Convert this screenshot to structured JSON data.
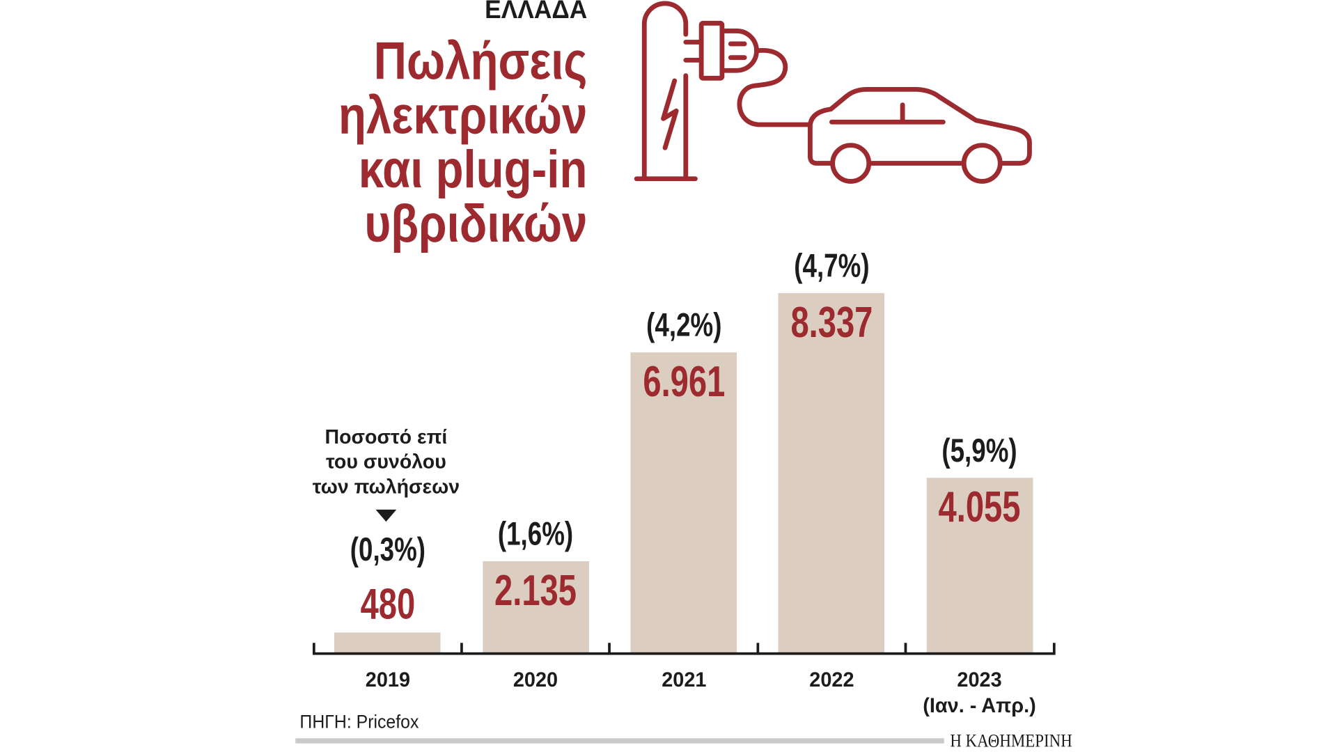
{
  "colors": {
    "accent": "#9c2a2f",
    "bar": "#dccdc1",
    "text": "#1c1c1c",
    "rule": "#cacaca"
  },
  "header": {
    "kicker": "ΕΛΛΑΔΑ"
  },
  "icons": [
    "charging-station-icon",
    "lightning-bolt-icon",
    "plug-icon",
    "charging-cable",
    "electric-car-icon",
    "down-triangle-icon"
  ],
  "chart_data": {
    "type": "bar",
    "title_lines": [
      "Πωλήσεις",
      "ηλεκτρικών",
      "και plug-in",
      "υβριδικών"
    ],
    "categories": [
      "2019",
      "2020",
      "2021",
      "2022",
      "2023"
    ],
    "category_notes": [
      "",
      "",
      "",
      "",
      "(Ιαν. - Απρ.)"
    ],
    "series": [
      {
        "values": [
          480,
          2135,
          6961,
          8337,
          4055
        ],
        "value_labels": [
          "480",
          "2.135",
          "6.961",
          "8.337",
          "4.055"
        ],
        "share_of_total_pct": [
          0.3,
          1.6,
          4.2,
          4.7,
          5.9
        ],
        "share_labels": [
          "(0,3%)",
          "(1,6%)",
          "(4,2%)",
          "(4,7%)",
          "(5,9%)"
        ]
      }
    ],
    "annotation_lines": [
      "Ποσοστό επί",
      "του συνόλου",
      "των πωλήσεων"
    ],
    "grid": false
  },
  "footer": {
    "source": "ΠΗΓΗ: Pricefox",
    "brand": "Η ΚΑΘΗΜΕΡΙΝΗ"
  }
}
